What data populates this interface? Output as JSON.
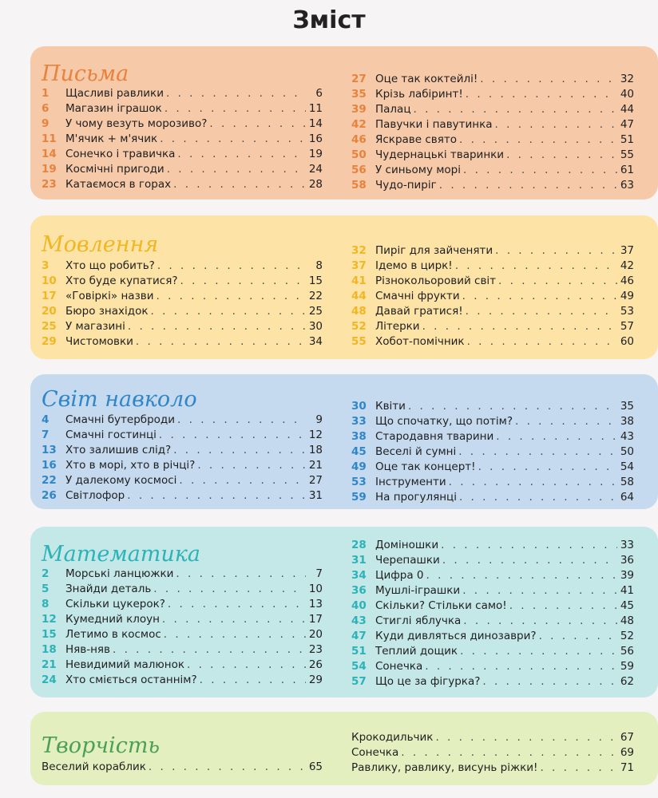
{
  "title": "Зміст",
  "sections": [
    {
      "title": "Письма",
      "color": "#f6c9a9",
      "title_color": "#e8823c",
      "num_color": "#e8823c",
      "left": [
        {
          "n": "1",
          "t": "Щасливі равлики",
          "p": "6"
        },
        {
          "n": "6",
          "t": "Магазин іграшок",
          "p": "11"
        },
        {
          "n": "9",
          "t": "У чому везуть морозиво?",
          "p": "14"
        },
        {
          "n": "11",
          "t": "М'ячик + м'ячик",
          "p": "16"
        },
        {
          "n": "14",
          "t": "Сонечко і травичка",
          "p": "19"
        },
        {
          "n": "19",
          "t": "Космічні пригоди",
          "p": "24"
        },
        {
          "n": "23",
          "t": "Катаємося в горах",
          "p": "28"
        }
      ],
      "right": [
        {
          "n": "27",
          "t": "Оце так коктейлі!",
          "p": "32"
        },
        {
          "n": "35",
          "t": "Крізь лабіринт!",
          "p": "40"
        },
        {
          "n": "39",
          "t": "Палац",
          "p": "44"
        },
        {
          "n": "42",
          "t": "Павучки і павутинка",
          "p": "47"
        },
        {
          "n": "46",
          "t": "Яскраве свято",
          "p": "51"
        },
        {
          "n": "50",
          "t": "Чудернацькі тваринки",
          "p": "55"
        },
        {
          "n": "56",
          "t": "У синьому морі",
          "p": "61"
        },
        {
          "n": "58",
          "t": "Чудо-пиріг",
          "p": "63"
        }
      ]
    },
    {
      "title": "Мовлення",
      "color": "#fde3a6",
      "title_color": "#f1b622",
      "num_color": "#f1b622",
      "left": [
        {
          "n": "3",
          "t": "Хто що робить?",
          "p": "8"
        },
        {
          "n": "10",
          "t": "Хто буде купатися?",
          "p": "15"
        },
        {
          "n": "17",
          "t": "«Говіркі» назви",
          "p": "22"
        },
        {
          "n": "20",
          "t": "Бюро знахідок",
          "p": "25"
        },
        {
          "n": "25",
          "t": "У магазині",
          "p": "30"
        },
        {
          "n": "29",
          "t": "Чистомовки",
          "p": "34"
        }
      ],
      "right": [
        {
          "n": "32",
          "t": "Пиріг для зайченяти",
          "p": "37"
        },
        {
          "n": "37",
          "t": "Ідемо в цирк!",
          "p": "42"
        },
        {
          "n": "41",
          "t": "Різнокольоровий світ",
          "p": "46"
        },
        {
          "n": "44",
          "t": "Смачні фрукти",
          "p": "49"
        },
        {
          "n": "48",
          "t": "Давай гратися!",
          "p": "53"
        },
        {
          "n": "52",
          "t": "Літерки",
          "p": "57"
        },
        {
          "n": "55",
          "t": "Хобот-помічник",
          "p": "60"
        }
      ]
    },
    {
      "title": "Світ навколо",
      "color": "#c5d9ef",
      "title_color": "#2f86c9",
      "num_color": "#2f86c9",
      "left": [
        {
          "n": "4",
          "t": "Смачні бутерброди",
          "p": "9"
        },
        {
          "n": "7",
          "t": "Смачні гостинці",
          "p": "12"
        },
        {
          "n": "13",
          "t": "Хто залишив слід?",
          "p": "18"
        },
        {
          "n": "16",
          "t": "Хто в морі, хто в річці?",
          "p": "21"
        },
        {
          "n": "22",
          "t": "У далекому космосі",
          "p": "27"
        },
        {
          "n": "26",
          "t": "Світлофор",
          "p": "31"
        }
      ],
      "right": [
        {
          "n": "30",
          "t": "Квіти",
          "p": "35"
        },
        {
          "n": "33",
          "t": "Що спочатку, що потім?",
          "p": "38"
        },
        {
          "n": "38",
          "t": "Стародавня тварини",
          "p": "43"
        },
        {
          "n": "45",
          "t": "Веселі й сумні",
          "p": "50"
        },
        {
          "n": "49",
          "t": "Оце так концерт!",
          "p": "54"
        },
        {
          "n": "53",
          "t": "Інструменти",
          "p": "58"
        },
        {
          "n": "59",
          "t": "На прогулянці",
          "p": "64"
        }
      ]
    },
    {
      "title": "Математика",
      "color": "#c4e7e8",
      "title_color": "#2bb3b8",
      "num_color": "#2bb3b8",
      "left": [
        {
          "n": "2",
          "t": "Морські ланцюжки",
          "p": "7"
        },
        {
          "n": "5",
          "t": "Знайди деталь",
          "p": "10"
        },
        {
          "n": "8",
          "t": "Скільки цукерок?",
          "p": "13"
        },
        {
          "n": "12",
          "t": "Кумедний клоун",
          "p": "17"
        },
        {
          "n": "15",
          "t": "Летимо в космос",
          "p": "20"
        },
        {
          "n": "18",
          "t": "Няв-няв",
          "p": "23"
        },
        {
          "n": "21",
          "t": "Невидимий малюнок",
          "p": "26"
        },
        {
          "n": "24",
          "t": "Хто сміється останнім?",
          "p": "29"
        }
      ],
      "right": [
        {
          "n": "28",
          "t": "Доміношки",
          "p": "33"
        },
        {
          "n": "31",
          "t": "Черепашки",
          "p": "36"
        },
        {
          "n": "34",
          "t": "Цифра 0",
          "p": "39"
        },
        {
          "n": "36",
          "t": "Мушлі-іграшки",
          "p": "41"
        },
        {
          "n": "40",
          "t": "Скільки? Стільки само!",
          "p": "45"
        },
        {
          "n": "43",
          "t": "Стиглі яблучка",
          "p": "48"
        },
        {
          "n": "47",
          "t": "Куди дивляться динозаври?",
          "p": "52"
        },
        {
          "n": "51",
          "t": "Теплий дощик",
          "p": "56"
        },
        {
          "n": "54",
          "t": "Сонечка",
          "p": "59"
        },
        {
          "n": "57",
          "t": "Що це за фігурка?",
          "p": "62"
        }
      ]
    },
    {
      "title": "Творчість",
      "color": "#e3efbe",
      "title_color": "#4aa05a",
      "num_color": "#4aa05a",
      "left": [
        {
          "n": "",
          "t": "Веселий кораблик",
          "p": "65"
        }
      ],
      "right": [
        {
          "n": "",
          "t": "Крокодильчик",
          "p": "67"
        },
        {
          "n": "",
          "t": "Сонечка",
          "p": "69"
        },
        {
          "n": "",
          "t": "Равлику, равлику, висунь ріжки!",
          "p": "71"
        }
      ]
    }
  ]
}
